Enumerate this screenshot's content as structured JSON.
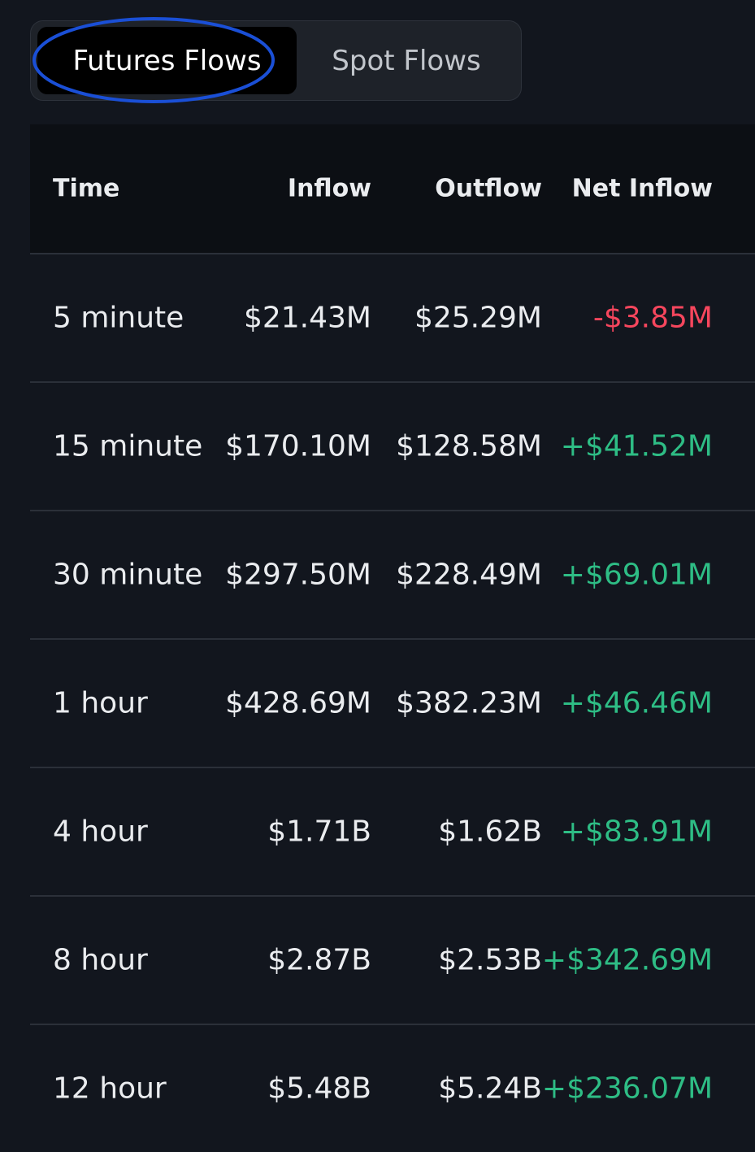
{
  "tabs": {
    "futures_label": "Futures Flows",
    "spot_label": "Spot Flows",
    "active": "futures"
  },
  "annotation": {
    "shape": "ellipse",
    "color": "#1a4fd6",
    "highlights": "Futures Flows"
  },
  "colors": {
    "background": "#12161e",
    "header_background": "#0c0f14",
    "positive": "#2ebd85",
    "negative": "#f6465d",
    "text": "#eaecef"
  },
  "table": {
    "headers": {
      "time": "Time",
      "inflow": "Inflow",
      "outflow": "Outflow",
      "net_inflow": "Net Inflow"
    },
    "rows": [
      {
        "time": "5 minute",
        "inflow": "$21.43M",
        "outflow": "$25.29M",
        "net": "-$3.85M",
        "sign": "negative"
      },
      {
        "time": "15 minute",
        "inflow": "$170.10M",
        "outflow": "$128.58M",
        "net": "+$41.52M",
        "sign": "positive"
      },
      {
        "time": "30 minute",
        "inflow": "$297.50M",
        "outflow": "$228.49M",
        "net": "+$69.01M",
        "sign": "positive"
      },
      {
        "time": "1 hour",
        "inflow": "$428.69M",
        "outflow": "$382.23M",
        "net": "+$46.46M",
        "sign": "positive"
      },
      {
        "time": "4 hour",
        "inflow": "$1.71B",
        "outflow": "$1.62B",
        "net": "+$83.91M",
        "sign": "positive"
      },
      {
        "time": "8 hour",
        "inflow": "$2.87B",
        "outflow": "$2.53B",
        "net": "+$342.69M",
        "sign": "positive"
      },
      {
        "time": "12 hour",
        "inflow": "$5.48B",
        "outflow": "$5.24B",
        "net": "+$236.07M",
        "sign": "positive"
      }
    ]
  }
}
